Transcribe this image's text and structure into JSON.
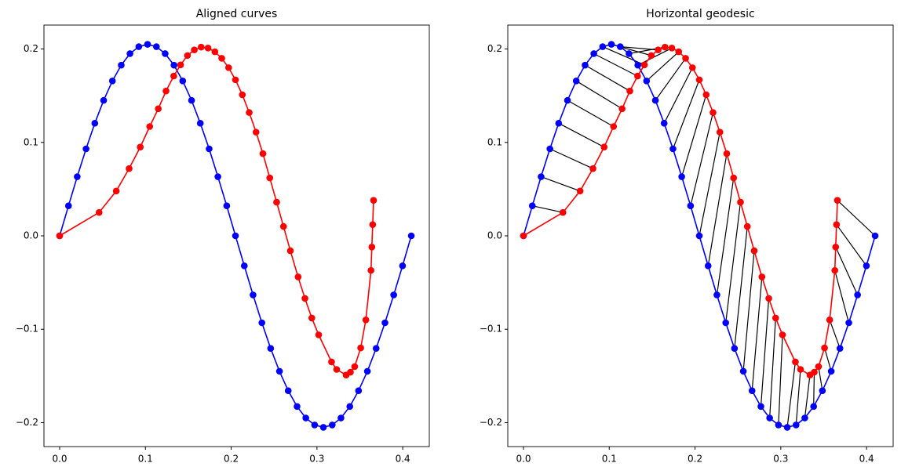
{
  "chart_data": [
    {
      "type": "line",
      "title": "Aligned curves",
      "xlim": [
        -0.0183,
        0.431
      ],
      "ylim": [
        -0.2256,
        0.2256
      ],
      "xticks": [
        {
          "value": 0,
          "label": "0.0"
        },
        0.1,
        0.2,
        0.3,
        0.4
      ],
      "yticks": [
        {
          "value": -0.2,
          "label": "−0.2"
        },
        {
          "value": -0.1,
          "label": "−0.1"
        },
        {
          "value": 0,
          "label": "0.0"
        },
        0.1,
        0.2
      ],
      "series": [
        {
          "color": "#0000ff",
          "x": [
            0,
            0.0103,
            0.0205,
            0.0308,
            0.041,
            0.0513,
            0.0615,
            0.0718,
            0.082,
            0.0923,
            0.1025,
            0.1128,
            0.123,
            0.1333,
            0.1435,
            0.1538,
            0.164,
            0.1743,
            0.1845,
            0.1948,
            0.205,
            0.2153,
            0.2255,
            0.2358,
            0.246,
            0.2563,
            0.2665,
            0.2768,
            0.287,
            0.2973,
            0.3075,
            0.3178,
            0.328,
            0.3383,
            0.3485,
            0.3588,
            0.369,
            0.3793,
            0.3895,
            0.3998,
            0.41
          ],
          "values": [
            0,
            0.0321,
            0.0633,
            0.0931,
            0.1205,
            0.145,
            0.1658,
            0.1827,
            0.195,
            0.2025,
            0.205,
            0.2025,
            0.195,
            0.1827,
            0.1658,
            0.145,
            0.1205,
            0.0931,
            0.0633,
            0.0321,
            0,
            -0.0321,
            -0.0633,
            -0.0931,
            -0.1205,
            -0.145,
            -0.1658,
            -0.1827,
            -0.195,
            -0.2025,
            -0.205,
            -0.2025,
            -0.195,
            -0.1827,
            -0.1658,
            -0.145,
            -0.1205,
            -0.0931,
            -0.0633,
            -0.0321,
            0
          ]
        },
        {
          "color": "#ff0000",
          "x": [
            0,
            0.046,
            0.066,
            0.081,
            0.094,
            0.105,
            0.115,
            0.124,
            0.133,
            0.141,
            0.149,
            0.157,
            0.165,
            0.173,
            0.181,
            0.189,
            0.197,
            0.205,
            0.213,
            0.221,
            0.229,
            0.237,
            0.245,
            0.253,
            0.261,
            0.269,
            0.278,
            0.286,
            0.294,
            0.302,
            0.317,
            0.323,
            0.334,
            0.339,
            0.344,
            0.351,
            0.357,
            0.363,
            0.364,
            0.365,
            0.366
          ],
          "values": [
            0,
            0.025,
            0.048,
            0.072,
            0.095,
            0.117,
            0.136,
            0.155,
            0.171,
            0.183,
            0.193,
            0.199,
            0.202,
            0.201,
            0.197,
            0.19,
            0.18,
            0.167,
            0.151,
            0.132,
            0.111,
            0.088,
            0.062,
            0.036,
            0.01,
            -0.016,
            -0.044,
            -0.067,
            -0.088,
            -0.106,
            -0.135,
            -0.143,
            -0.149,
            -0.146,
            -0.14,
            -0.12,
            -0.09,
            -0.037,
            -0.012,
            0.012,
            0.038
          ]
        }
      ]
    },
    {
      "type": "line",
      "title": "Horizontal geodesic",
      "geodesic_color": "#000000",
      "xlim": [
        -0.0183,
        0.431
      ],
      "ylim": [
        -0.2256,
        0.2256
      ],
      "xticks": [
        {
          "value": 0,
          "label": "0.0"
        },
        0.1,
        0.2,
        0.3,
        0.4
      ],
      "yticks": [
        {
          "value": -0.2,
          "label": "−0.2"
        },
        {
          "value": -0.1,
          "label": "−0.1"
        },
        {
          "value": 0,
          "label": "0.0"
        },
        0.1,
        0.2
      ],
      "series": [
        {
          "color": "#0000ff",
          "x": [
            0,
            0.0103,
            0.0205,
            0.0308,
            0.041,
            0.0513,
            0.0615,
            0.0718,
            0.082,
            0.0923,
            0.1025,
            0.1128,
            0.123,
            0.1333,
            0.1435,
            0.1538,
            0.164,
            0.1743,
            0.1845,
            0.1948,
            0.205,
            0.2153,
            0.2255,
            0.2358,
            0.246,
            0.2563,
            0.2665,
            0.2768,
            0.287,
            0.2973,
            0.3075,
            0.3178,
            0.328,
            0.3383,
            0.3485,
            0.3588,
            0.369,
            0.3793,
            0.3895,
            0.3998,
            0.41
          ],
          "values": [
            0,
            0.0321,
            0.0633,
            0.0931,
            0.1205,
            0.145,
            0.1658,
            0.1827,
            0.195,
            0.2025,
            0.205,
            0.2025,
            0.195,
            0.1827,
            0.1658,
            0.145,
            0.1205,
            0.0931,
            0.0633,
            0.0321,
            0,
            -0.0321,
            -0.0633,
            -0.0931,
            -0.1205,
            -0.145,
            -0.1658,
            -0.1827,
            -0.195,
            -0.2025,
            -0.205,
            -0.2025,
            -0.195,
            -0.1827,
            -0.1658,
            -0.145,
            -0.1205,
            -0.0931,
            -0.0633,
            -0.0321,
            0
          ]
        },
        {
          "color": "#ff0000",
          "x": [
            0,
            0.046,
            0.066,
            0.081,
            0.094,
            0.105,
            0.115,
            0.124,
            0.133,
            0.141,
            0.149,
            0.157,
            0.165,
            0.173,
            0.181,
            0.189,
            0.197,
            0.205,
            0.213,
            0.221,
            0.229,
            0.237,
            0.245,
            0.253,
            0.261,
            0.269,
            0.278,
            0.286,
            0.294,
            0.302,
            0.317,
            0.323,
            0.334,
            0.339,
            0.344,
            0.351,
            0.357,
            0.363,
            0.364,
            0.365,
            0.366
          ],
          "values": [
            0,
            0.025,
            0.048,
            0.072,
            0.095,
            0.117,
            0.136,
            0.155,
            0.171,
            0.183,
            0.193,
            0.199,
            0.202,
            0.201,
            0.197,
            0.19,
            0.18,
            0.167,
            0.151,
            0.132,
            0.111,
            0.088,
            0.062,
            0.036,
            0.01,
            -0.016,
            -0.044,
            -0.067,
            -0.088,
            -0.106,
            -0.135,
            -0.143,
            -0.149,
            -0.146,
            -0.14,
            -0.12,
            -0.09,
            -0.037,
            -0.012,
            0.012,
            0.038
          ]
        }
      ]
    }
  ]
}
